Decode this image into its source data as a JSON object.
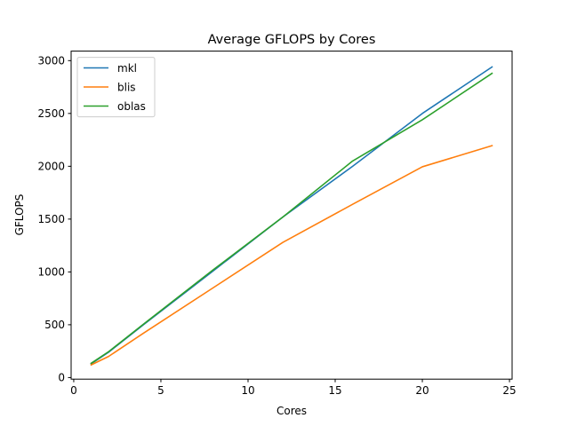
{
  "chart_data": {
    "type": "line",
    "title": "Average GFLOPS by Cores",
    "xlabel": "Cores",
    "ylabel": "GFLOPS",
    "xlim": [
      -0.15,
      25.15
    ],
    "ylim": [
      -15,
      3090
    ],
    "xticks": [
      0,
      5,
      10,
      15,
      20,
      25
    ],
    "yticks": [
      0,
      500,
      1000,
      1500,
      2000,
      2500,
      3000
    ],
    "grid": false,
    "legend_position": "upper-left",
    "series": [
      {
        "name": "mkl",
        "color": "#1f77b4",
        "x": [
          1,
          2,
          4,
          8,
          12,
          16,
          20,
          24
        ],
        "y": [
          130,
          240,
          500,
          1010,
          1520,
          2000,
          2500,
          2940
        ]
      },
      {
        "name": "blis",
        "color": "#ff7f0e",
        "x": [
          1,
          2,
          4,
          8,
          12,
          16,
          20,
          24
        ],
        "y": [
          120,
          200,
          420,
          850,
          1280,
          1640,
          1995,
          2195
        ]
      },
      {
        "name": "oblas",
        "color": "#2ca02c",
        "x": [
          1,
          2,
          4,
          8,
          12,
          16,
          20,
          24
        ],
        "y": [
          135,
          245,
          505,
          1020,
          1520,
          2050,
          2440,
          2880
        ]
      }
    ]
  }
}
